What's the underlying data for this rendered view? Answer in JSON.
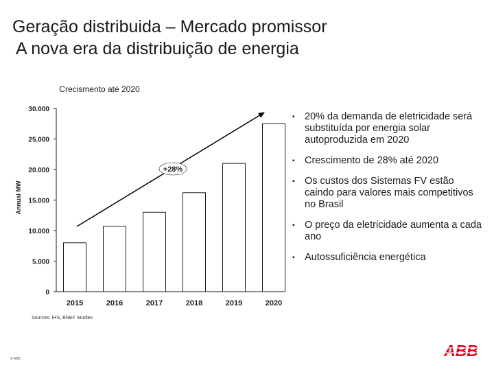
{
  "slide": {
    "title": "Geração distribuida – Mercado promissor",
    "subtitle": "A nova era da distribuição de energia",
    "sources": "Sources: IHS, BNEF Studies",
    "copyright": "© ABB",
    "logo_text": "ABB",
    "bullets": [
      "20% da demanda de eletricidade será substituída por energia solar autoproduzida em 2020",
      "Crescimento de 28% até 2020",
      "Os custos dos Sistemas FV estão caindo para valores mais competitivos no Brasil",
      "O preço da eletricidade aumenta a cada ano",
      "Autossuficiência energética"
    ],
    "colors": {
      "bar_fill": "#ffffff",
      "bar_stroke": "#1a1a1a",
      "logo_red": "#e2001a",
      "arrow": "#000000"
    }
  },
  "chart_data": {
    "type": "bar",
    "title": "Crecismento até 2020",
    "ylabel": "Annual MW",
    "categories": [
      "2015",
      "2016",
      "2017",
      "2018",
      "2019",
      "2020"
    ],
    "values": [
      8000,
      10700,
      13000,
      16200,
      21000,
      27500
    ],
    "ylim": [
      0,
      30000
    ],
    "yticks": [
      0,
      5000,
      10000,
      15000,
      20000,
      25000,
      30000
    ],
    "ytick_labels": [
      "0",
      "5.000",
      "10.000",
      "15.000",
      "20.000",
      "25.000",
      "30.000"
    ],
    "annotation": "+28%",
    "grid": false,
    "legend": "none"
  }
}
